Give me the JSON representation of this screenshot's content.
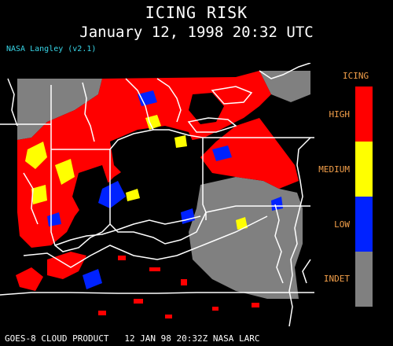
{
  "header": {
    "title": "ICING RISK",
    "subtitle": "January 12, 1998 20:32 UTC",
    "credit": "NASA Langley (v2.1)"
  },
  "legend": {
    "title": "ICING",
    "levels": [
      {
        "label": "HIGH",
        "color": "#ff0000"
      },
      {
        "label": "MEDIUM",
        "color": "#ffff00"
      },
      {
        "label": "LOW",
        "color": "#0022ff"
      },
      {
        "label": "INDET",
        "color": "#808080"
      }
    ]
  },
  "footer": {
    "text": "GOES-8 CLOUD PRODUCT   12 JAN 98 20:32Z NASA LARC"
  },
  "colors": {
    "background": "#000000",
    "high": "#ff0000",
    "medium": "#ffff00",
    "low": "#0022ff",
    "indet": "#808080",
    "borders": "#ffffff",
    "legend_text": "#f4a04a",
    "credit_text": "#38d6e8"
  }
}
